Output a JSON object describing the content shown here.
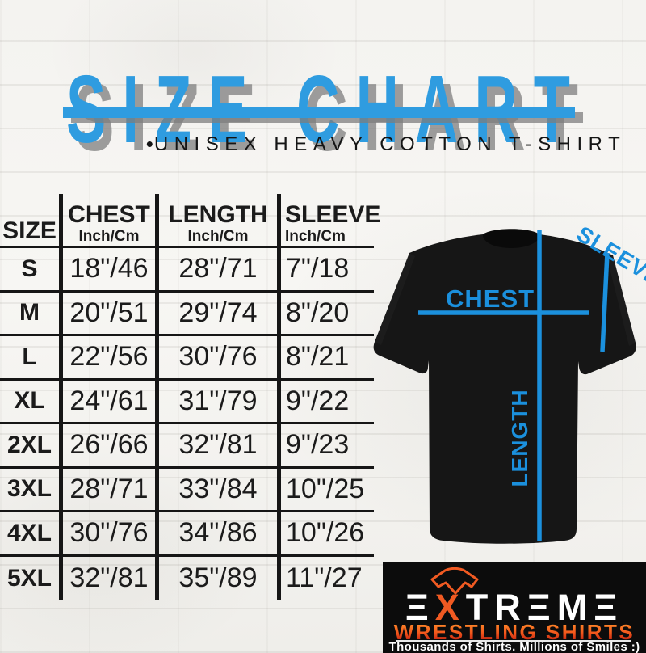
{
  "header": {
    "title": "SIZE CHART",
    "bullet": "•",
    "subtitle": "UNISEX HEAVY COTTON T-SHIRT"
  },
  "size_table": {
    "columns": [
      {
        "label": "SIZE",
        "sublabel": ""
      },
      {
        "label": "CHEST",
        "sublabel": "Inch/Cm"
      },
      {
        "label": "LENGTH",
        "sublabel": "Inch/Cm"
      },
      {
        "label": "SLEEVE",
        "sublabel": "Inch/Cm"
      }
    ],
    "rows": [
      [
        "S",
        "18\"/46",
        "28\"/71",
        "7\"/18"
      ],
      [
        "M",
        "20\"/51",
        "29\"/74",
        "8\"/20"
      ],
      [
        "L",
        "22\"/56",
        "30\"/76",
        "8\"/21"
      ],
      [
        "XL",
        "24\"/61",
        "31\"/79",
        "9\"/22"
      ],
      [
        "2XL",
        "26\"/66",
        "32\"/81",
        "9\"/23"
      ],
      [
        "3XL",
        "28\"/71",
        "33\"/84",
        "10\"/25"
      ],
      [
        "4XL",
        "30\"/76",
        "34\"/86",
        "10\"/26"
      ],
      [
        "5XL",
        "32\"/81",
        "35\"/89",
        "11\"/27"
      ]
    ]
  },
  "chart_data": {
    "type": "table",
    "title": "SIZE CHART",
    "subtitle": "UNISEX HEAVY COTTON T-SHIRT",
    "columns": [
      "SIZE",
      "CHEST Inch/Cm",
      "LENGTH Inch/Cm",
      "SLEEVE Inch/Cm"
    ],
    "rows": [
      [
        "S",
        "18\"/46",
        "28\"/71",
        "7\"/18"
      ],
      [
        "M",
        "20\"/51",
        "29\"/74",
        "8\"/20"
      ],
      [
        "L",
        "22\"/56",
        "30\"/76",
        "8\"/21"
      ],
      [
        "XL",
        "24\"/61",
        "31\"/79",
        "9\"/22"
      ],
      [
        "2XL",
        "26\"/66",
        "32\"/81",
        "9\"/23"
      ],
      [
        "3XL",
        "28\"/71",
        "33\"/84",
        "10\"/25"
      ],
      [
        "4XL",
        "30\"/76",
        "34\"/86",
        "10\"/26"
      ],
      [
        "5XL",
        "32\"/81",
        "35\"/89",
        "11\"/27"
      ]
    ]
  },
  "diagram": {
    "chest_label": "CHEST",
    "length_label": "LENGTH",
    "sleeve_label": "SLEEVE"
  },
  "logo": {
    "brand_text": "EXTREME",
    "brand_display_pre": "Ξ",
    "brand_display_x": "X",
    "brand_display_post": "TRΞMΞ",
    "line2": "WRESTLING SHIRTS",
    "tagline": "Thousands of Shirts. Millions of Smiles :)"
  },
  "colors": {
    "accent_blue": "#2f9ce0",
    "diagram_blue": "#1b90dd",
    "logo_orange": "#f15a22",
    "logo_red": "#c52310",
    "panel_black": "#0c0c0c",
    "table_ink": "#161616",
    "shadow_gray": "#7d7d7d"
  }
}
